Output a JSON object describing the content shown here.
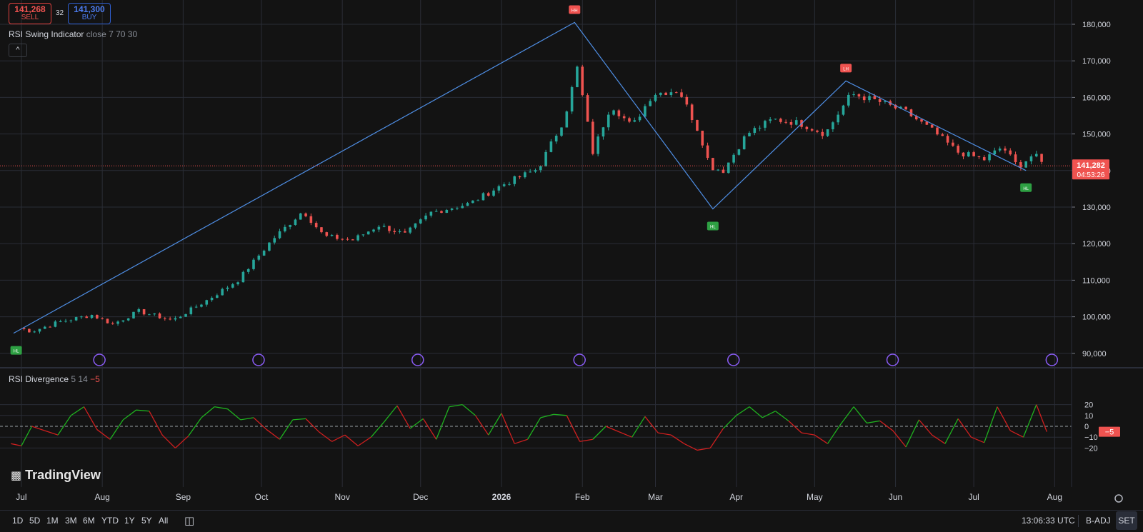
{
  "trade": {
    "sell_price": "141,268",
    "sell_label": "SELL",
    "buy_price": "141,300",
    "buy_label": "BUY",
    "spread": "32"
  },
  "indicator_main": {
    "name": "RSI Swing Indicator",
    "params": "close 7 70 30",
    "collapse_glyph": "^"
  },
  "indicator_sub": {
    "name": "RSI Divergence",
    "params": "5 14",
    "value_label": "−5"
  },
  "price_axis": {
    "last_price": "141,282",
    "countdown": "04:53:26"
  },
  "time_axis": [
    "Jul",
    "Aug",
    "Sep",
    "Oct",
    "Nov",
    "Dec",
    "2026",
    "Feb",
    "Mar",
    "Apr",
    "May",
    "Jun",
    "Jul",
    "Aug"
  ],
  "logo": "TradingView",
  "timeframes": [
    "1D",
    "5D",
    "1M",
    "3M",
    "6M",
    "YTD",
    "1Y",
    "5Y",
    "All"
  ],
  "status": {
    "clock": "13:06:33 UTC",
    "adjust": "B-ADJ",
    "session": "SET"
  },
  "colors": {
    "up": "#26a69a",
    "down": "#ef5350",
    "swing_line": "#4f8fe6",
    "rsi_up": "#1fb21f",
    "rsi_down": "#cf1f1f",
    "grid": "#2a2d36",
    "event": "#8a5cf6"
  },
  "chart_data": [
    {
      "type": "candlestick",
      "title": "RSI Swing Indicator",
      "y_ticks": [
        90000,
        100000,
        110000,
        120000,
        130000,
        140000,
        150000,
        160000,
        170000,
        180000
      ],
      "ylim": [
        87500,
        184500
      ],
      "x_months": [
        "Jul",
        "Aug",
        "Sep",
        "Oct",
        "Nov",
        "Dec",
        "2026",
        "Feb",
        "Mar",
        "Apr",
        "May",
        "Jun",
        "Jul",
        "Aug"
      ],
      "close_series": [
        {
          "x": "2025-06-30",
          "y": 97000
        },
        {
          "x": "2025-07-05",
          "y": 96000
        },
        {
          "x": "2025-07-15",
          "y": 98500
        },
        {
          "x": "2025-07-28",
          "y": 100500
        },
        {
          "x": "2025-08-05",
          "y": 98000
        },
        {
          "x": "2025-08-15",
          "y": 101500
        },
        {
          "x": "2025-08-28",
          "y": 99000
        },
        {
          "x": "2025-09-10",
          "y": 104500
        },
        {
          "x": "2025-09-22",
          "y": 110000
        },
        {
          "x": "2025-10-05",
          "y": 121000
        },
        {
          "x": "2025-10-17",
          "y": 129000
        },
        {
          "x": "2025-10-25",
          "y": 122000
        },
        {
          "x": "2025-11-05",
          "y": 121000
        },
        {
          "x": "2025-11-15",
          "y": 125000
        },
        {
          "x": "2025-11-25",
          "y": 122500
        },
        {
          "x": "2025-12-05",
          "y": 128500
        },
        {
          "x": "2025-12-20",
          "y": 131000
        },
        {
          "x": "2026-01-01",
          "y": 136000
        },
        {
          "x": "2026-01-15",
          "y": 140500
        },
        {
          "x": "2026-01-25",
          "y": 154000
        },
        {
          "x": "2026-01-30",
          "y": 168000
        },
        {
          "x": "2026-02-05",
          "y": 145000
        },
        {
          "x": "2026-02-12",
          "y": 158000
        },
        {
          "x": "2026-02-20",
          "y": 152000
        },
        {
          "x": "2026-02-28",
          "y": 161000
        },
        {
          "x": "2026-03-10",
          "y": 162000
        },
        {
          "x": "2026-03-18",
          "y": 150000
        },
        {
          "x": "2026-03-22",
          "y": 141000
        },
        {
          "x": "2026-03-27",
          "y": 140000
        },
        {
          "x": "2026-04-05",
          "y": 150000
        },
        {
          "x": "2026-04-15",
          "y": 154000
        },
        {
          "x": "2026-04-25",
          "y": 153000
        },
        {
          "x": "2026-05-05",
          "y": 150000
        },
        {
          "x": "2026-05-15",
          "y": 161000
        },
        {
          "x": "2026-05-25",
          "y": 159000
        },
        {
          "x": "2026-06-05",
          "y": 156000
        },
        {
          "x": "2026-06-15",
          "y": 151000
        },
        {
          "x": "2026-06-25",
          "y": 145000
        },
        {
          "x": "2026-07-05",
          "y": 143000
        },
        {
          "x": "2026-07-12",
          "y": 146500
        },
        {
          "x": "2026-07-18",
          "y": 141000
        },
        {
          "x": "2026-07-24",
          "y": 144500
        },
        {
          "x": "2026-07-28",
          "y": 141282
        }
      ],
      "swing_line": [
        {
          "x": "2025-06-28",
          "y": 95500
        },
        {
          "x": "2026-01-29",
          "y": 180500
        },
        {
          "x": "2026-03-23",
          "y": 129500
        },
        {
          "x": "2026-05-13",
          "y": 164500
        },
        {
          "x": "2026-07-21",
          "y": 140000
        }
      ],
      "markers": [
        {
          "x": "2025-06-29",
          "label": "HL",
          "side": "below"
        },
        {
          "x": "2026-01-29",
          "label": "HH",
          "side": "above"
        },
        {
          "x": "2026-03-23",
          "label": "HL",
          "side": "below"
        },
        {
          "x": "2026-05-13",
          "label": "LH",
          "side": "above"
        },
        {
          "x": "2026-07-21",
          "label": "HL",
          "side": "below"
        }
      ],
      "last_price": 141282
    },
    {
      "type": "line",
      "title": "RSI Divergence",
      "y_ticks": [
        -20,
        -10,
        0,
        10,
        20
      ],
      "ylim": [
        -24,
        23
      ],
      "zero_line": true,
      "last_value": -5,
      "x": [
        "2025-06-27",
        "2025-07-01",
        "2025-07-05",
        "2025-07-10",
        "2025-07-15",
        "2025-07-20",
        "2025-07-25",
        "2025-07-30",
        "2025-08-04",
        "2025-08-09",
        "2025-08-14",
        "2025-08-19",
        "2025-08-24",
        "2025-08-29",
        "2025-09-03",
        "2025-09-08",
        "2025-09-13",
        "2025-09-18",
        "2025-09-23",
        "2025-09-28",
        "2025-10-03",
        "2025-10-08",
        "2025-10-13",
        "2025-10-18",
        "2025-10-23",
        "2025-10-28",
        "2025-11-02",
        "2025-11-07",
        "2025-11-12",
        "2025-11-17",
        "2025-11-22",
        "2025-11-27",
        "2025-12-02",
        "2025-12-07",
        "2025-12-12",
        "2025-12-17",
        "2025-12-22",
        "2025-12-27",
        "2026-01-01",
        "2026-01-06",
        "2026-01-11",
        "2026-01-16",
        "2026-01-21",
        "2026-01-26",
        "2026-01-31",
        "2026-02-05",
        "2026-02-10",
        "2026-02-15",
        "2026-02-20",
        "2026-02-25",
        "2026-03-02",
        "2026-03-07",
        "2026-03-12",
        "2026-03-17",
        "2026-03-22",
        "2026-03-27",
        "2026-04-01",
        "2026-04-06",
        "2026-04-11",
        "2026-04-16",
        "2026-04-21",
        "2026-04-26",
        "2026-05-01",
        "2026-05-06",
        "2026-05-11",
        "2026-05-16",
        "2026-05-21",
        "2026-05-26",
        "2026-05-31",
        "2026-06-05",
        "2026-06-10",
        "2026-06-15",
        "2026-06-20",
        "2026-06-25",
        "2026-06-30",
        "2026-07-05",
        "2026-07-10",
        "2026-07-15",
        "2026-07-20",
        "2026-07-25",
        "2026-07-29"
      ],
      "values": [
        -16,
        -18,
        0,
        -4,
        -8,
        10,
        18,
        -3,
        -12,
        6,
        15,
        14,
        -8,
        -20,
        -9,
        8,
        18,
        16,
        6,
        8,
        -3,
        -12,
        6,
        7,
        -5,
        -14,
        -8,
        -18,
        -10,
        4,
        19,
        -2,
        7,
        -12,
        18,
        20,
        10,
        -8,
        12,
        -16,
        -12,
        8,
        11,
        10,
        -14,
        -12,
        0,
        -5,
        -10,
        9,
        -6,
        -8,
        -16,
        -22,
        -20,
        -2,
        10,
        18,
        8,
        14,
        5,
        -6,
        -8,
        -16,
        2,
        18,
        3,
        5,
        -4,
        -19,
        6,
        -8,
        -16,
        7,
        -10,
        -15,
        18,
        -4,
        -10,
        20,
        -5
      ]
    }
  ]
}
